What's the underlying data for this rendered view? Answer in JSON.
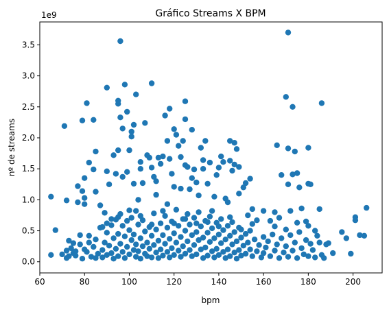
{
  "chart_data": {
    "type": "scatter",
    "title": "Gráfico Streams X BPM",
    "xlabel": "bpm",
    "ylabel": "nº de streams",
    "y_offset_label": "1e9",
    "xlim": [
      60,
      213
    ],
    "ylim": [
      -0.18,
      3.87
    ],
    "x_ticks": [
      60,
      80,
      100,
      120,
      140,
      160,
      180,
      200
    ],
    "y_ticks": [
      0.0,
      0.5,
      1.0,
      1.5,
      2.0,
      2.5,
      3.0,
      3.5
    ],
    "x_tick_labels": [
      "60",
      "80",
      "100",
      "120",
      "140",
      "160",
      "180",
      "200"
    ],
    "y_tick_labels": [
      "0.0",
      "0.5",
      "1.0",
      "1.5",
      "2.0",
      "2.5",
      "3.0",
      "3.5"
    ],
    "y_unit_note": "values in units of 1e9 streams",
    "grid": false,
    "marker_color": "#1f77b4",
    "points": [
      [
        65,
        0.11
      ],
      [
        65,
        1.05
      ],
      [
        67,
        0.51
      ],
      [
        71,
        2.19
      ],
      [
        72,
        0.99
      ],
      [
        72,
        0.18
      ],
      [
        73,
        0.09
      ],
      [
        73,
        0.34
      ],
      [
        75,
        0.14
      ],
      [
        76,
        0.17
      ],
      [
        77,
        0.96
      ],
      [
        77,
        1.22
      ],
      [
        78,
        0.43
      ],
      [
        79,
        1.14
      ],
      [
        79,
        2.28
      ],
      [
        80,
        1.35
      ],
      [
        80,
        1.03
      ],
      [
        80,
        0.93
      ],
      [
        81,
        2.56
      ],
      [
        82,
        1.6
      ],
      [
        82,
        0.31
      ],
      [
        84,
        2.29
      ],
      [
        84,
        1.49
      ],
      [
        85,
        1.78
      ],
      [
        85,
        1.13
      ],
      [
        87,
        0.91
      ],
      [
        88,
        0.56
      ],
      [
        89,
        0.79
      ],
      [
        90,
        2.81
      ],
      [
        90,
        1.46
      ],
      [
        91,
        1.25
      ],
      [
        92,
        0.69
      ],
      [
        93,
        1.72
      ],
      [
        94,
        1.42
      ],
      [
        95,
        1.8
      ],
      [
        95,
        2.6
      ],
      [
        95,
        2.55
      ],
      [
        96,
        3.56
      ],
      [
        96,
        2.33
      ],
      [
        97,
        1.37
      ],
      [
        97,
        2.15
      ],
      [
        98,
        2.86
      ],
      [
        99,
        1.45
      ],
      [
        99,
        2.42
      ],
      [
        100,
        1.8
      ],
      [
        101,
        2.1
      ],
      [
        101,
        2.02
      ],
      [
        102,
        2.21
      ],
      [
        102,
        1.26
      ],
      [
        103,
        2.7
      ],
      [
        103,
        0.82
      ],
      [
        104,
        1.0
      ],
      [
        105,
        1.5
      ],
      [
        105,
        1.61
      ],
      [
        106,
        1.27
      ],
      [
        107,
        2.24
      ],
      [
        108,
        1.72
      ],
      [
        109,
        1.68
      ],
      [
        110,
        2.88
      ],
      [
        110,
        1.52
      ],
      [
        111,
        1.37
      ],
      [
        112,
        1.3
      ],
      [
        112,
        1.08
      ],
      [
        113,
        1.68
      ],
      [
        114,
        1.58
      ],
      [
        115,
        1.7
      ],
      [
        116,
        2.36
      ],
      [
        117,
        1.95
      ],
      [
        117,
        0.93
      ],
      [
        118,
        2.47
      ],
      [
        118,
        1.66
      ],
      [
        119,
        1.42
      ],
      [
        120,
        1.21
      ],
      [
        120,
        2.14
      ],
      [
        121,
        2.05
      ],
      [
        122,
        1.87
      ],
      [
        123,
        1.69
      ],
      [
        123,
        1.18
      ],
      [
        124,
        1.95
      ],
      [
        125,
        2.59
      ],
      [
        125,
        2.3
      ],
      [
        125,
        1.56
      ],
      [
        126,
        1.53
      ],
      [
        127,
        1.17
      ],
      [
        128,
        1.35
      ],
      [
        128,
        2.13
      ],
      [
        129,
        1.49
      ],
      [
        130,
        1.28
      ],
      [
        131,
        1.07
      ],
      [
        132,
        1.84
      ],
      [
        133,
        1.64
      ],
      [
        133,
        1.5
      ],
      [
        134,
        1.95
      ],
      [
        135,
        1.26
      ],
      [
        136,
        1.6
      ],
      [
        137,
        0.82
      ],
      [
        138,
        1.05
      ],
      [
        139,
        1.4
      ],
      [
        140,
        1.52
      ],
      [
        141,
        1.7
      ],
      [
        142,
        1.61
      ],
      [
        143,
        1.02
      ],
      [
        144,
        0.96
      ],
      [
        145,
        1.95
      ],
      [
        145,
        1.63
      ],
      [
        146,
        1.47
      ],
      [
        147,
        1.57
      ],
      [
        147,
        1.92
      ],
      [
        148,
        1.82
      ],
      [
        149,
        1.53
      ],
      [
        149,
        1.1
      ],
      [
        151,
        1.2
      ],
      [
        152,
        1.27
      ],
      [
        153,
        0.75
      ],
      [
        154,
        1.34
      ],
      [
        155,
        0.85
      ],
      [
        157,
        0.67
      ],
      [
        160,
        0.82
      ],
      [
        163,
        0.66
      ],
      [
        165,
        0.8
      ],
      [
        166,
        1.88
      ],
      [
        167,
        0.71
      ],
      [
        168,
        1.4
      ],
      [
        170,
        2.66
      ],
      [
        171,
        3.7
      ],
      [
        171,
        1.83
      ],
      [
        171,
        1.25
      ],
      [
        172,
        0.82
      ],
      [
        173,
        2.5
      ],
      [
        173,
        1.41
      ],
      [
        174,
        1.78
      ],
      [
        175,
        1.43
      ],
      [
        176,
        1.2
      ],
      [
        177,
        0.86
      ],
      [
        179,
        0.65
      ],
      [
        180,
        1.84
      ],
      [
        180,
        1.26
      ],
      [
        181,
        1.25
      ],
      [
        183,
        0.5
      ],
      [
        185,
        0.85
      ],
      [
        186,
        2.56
      ],
      [
        188,
        0.28
      ],
      [
        189,
        0.3
      ],
      [
        191,
        0.14
      ],
      [
        195,
        0.48
      ],
      [
        197,
        0.38
      ],
      [
        199,
        0.13
      ],
      [
        201,
        0.72
      ],
      [
        201,
        0.67
      ],
      [
        203,
        0.43
      ],
      [
        205,
        0.42
      ],
      [
        206,
        0.87
      ],
      [
        70,
        0.12
      ],
      [
        72,
        0.06
      ],
      [
        74,
        0.22
      ],
      [
        76,
        0.1
      ],
      [
        78,
        0.28
      ],
      [
        79,
        0.05
      ],
      [
        81,
        0.16
      ],
      [
        82,
        0.42
      ],
      [
        83,
        0.08
      ],
      [
        84,
        0.24
      ],
      [
        85,
        0.36
      ],
      [
        86,
        0.13
      ],
      [
        87,
        0.55
      ],
      [
        88,
        0.19
      ],
      [
        88,
        0.07
      ],
      [
        89,
        0.31
      ],
      [
        90,
        0.47
      ],
      [
        90,
        0.11
      ],
      [
        91,
        0.26
      ],
      [
        92,
        0.59
      ],
      [
        92,
        0.14
      ],
      [
        93,
        0.38
      ],
      [
        93,
        0.05
      ],
      [
        94,
        0.68
      ],
      [
        94,
        0.21
      ],
      [
        95,
        0.45
      ],
      [
        95,
        0.09
      ],
      [
        96,
        0.77
      ],
      [
        96,
        0.29
      ],
      [
        97,
        0.58
      ],
      [
        97,
        0.16
      ],
      [
        98,
        0.41
      ],
      [
        98,
        0.06
      ],
      [
        99,
        0.66
      ],
      [
        99,
        0.24
      ],
      [
        100,
        0.51
      ],
      [
        100,
        0.12
      ],
      [
        101,
        0.35
      ],
      [
        101,
        0.71
      ],
      [
        102,
        0.19
      ],
      [
        102,
        0.44
      ],
      [
        103,
        0.08
      ],
      [
        103,
        0.28
      ],
      [
        104,
        0.6
      ],
      [
        104,
        0.17
      ],
      [
        105,
        0.38
      ],
      [
        105,
        0.05
      ],
      [
        106,
        0.25
      ],
      [
        106,
        0.67
      ],
      [
        107,
        0.13
      ],
      [
        107,
        0.49
      ],
      [
        108,
        0.31
      ],
      [
        108,
        0.09
      ],
      [
        109,
        0.56
      ],
      [
        109,
        0.21
      ],
      [
        110,
        0.42
      ],
      [
        110,
        0.07
      ],
      [
        111,
        0.27
      ],
      [
        111,
        0.78
      ],
      [
        112,
        0.15
      ],
      [
        112,
        0.52
      ],
      [
        113,
        0.34
      ],
      [
        113,
        0.06
      ],
      [
        114,
        0.62
      ],
      [
        114,
        0.2
      ],
      [
        115,
        0.43
      ],
      [
        115,
        0.1
      ],
      [
        116,
        0.29
      ],
      [
        116,
        0.74
      ],
      [
        117,
        0.16
      ],
      [
        117,
        0.55
      ],
      [
        118,
        0.37
      ],
      [
        118,
        0.07
      ],
      [
        119,
        0.65
      ],
      [
        119,
        0.22
      ],
      [
        120,
        0.46
      ],
      [
        120,
        0.11
      ],
      [
        121,
        0.31
      ],
      [
        121,
        0.84
      ],
      [
        122,
        0.18
      ],
      [
        122,
        0.58
      ],
      [
        123,
        0.4
      ],
      [
        123,
        0.08
      ],
      [
        124,
        0.69
      ],
      [
        124,
        0.25
      ],
      [
        125,
        0.5
      ],
      [
        125,
        0.13
      ],
      [
        126,
        0.33
      ],
      [
        126,
        0.77
      ],
      [
        127,
        0.19
      ],
      [
        127,
        0.6
      ],
      [
        128,
        0.43
      ],
      [
        128,
        0.09
      ],
      [
        129,
        0.71
      ],
      [
        129,
        0.27
      ],
      [
        130,
        0.48
      ],
      [
        130,
        0.12
      ],
      [
        131,
        0.35
      ],
      [
        131,
        0.8
      ],
      [
        132,
        0.2
      ],
      [
        132,
        0.57
      ],
      [
        133,
        0.39
      ],
      [
        133,
        0.06
      ],
      [
        134,
        0.66
      ],
      [
        134,
        0.23
      ],
      [
        135,
        0.47
      ],
      [
        135,
        0.1
      ],
      [
        136,
        0.32
      ],
      [
        136,
        0.73
      ],
      [
        137,
        0.17
      ],
      [
        137,
        0.54
      ],
      [
        138,
        0.38
      ],
      [
        138,
        0.07
      ],
      [
        139,
        0.63
      ],
      [
        139,
        0.21
      ],
      [
        140,
        0.44
      ],
      [
        140,
        0.11
      ],
      [
        141,
        0.3
      ],
      [
        141,
        0.69
      ],
      [
        142,
        0.16
      ],
      [
        142,
        0.51
      ],
      [
        143,
        0.36
      ],
      [
        143,
        0.06
      ],
      [
        144,
        0.58
      ],
      [
        144,
        0.2
      ],
      [
        145,
        0.42
      ],
      [
        145,
        0.09
      ],
      [
        146,
        0.28
      ],
      [
        146,
        0.64
      ],
      [
        147,
        0.15
      ],
      [
        147,
        0.48
      ],
      [
        148,
        0.33
      ],
      [
        148,
        0.05
      ],
      [
        149,
        0.55
      ],
      [
        149,
        0.19
      ],
      [
        150,
        0.39
      ],
      [
        150,
        0.1
      ],
      [
        151,
        0.26
      ],
      [
        152,
        0.45
      ],
      [
        152,
        0.13
      ],
      [
        153,
        0.31
      ],
      [
        154,
        0.2
      ],
      [
        154,
        0.5
      ],
      [
        155,
        0.09
      ],
      [
        156,
        0.36
      ],
      [
        157,
        0.17
      ],
      [
        158,
        0.27
      ],
      [
        159,
        0.07
      ],
      [
        160,
        0.4
      ],
      [
        160,
        0.14
      ],
      [
        161,
        0.23
      ],
      [
        162,
        0.33
      ],
      [
        163,
        0.09
      ],
      [
        164,
        0.44
      ],
      [
        165,
        0.18
      ],
      [
        166,
        0.28
      ],
      [
        167,
        0.06
      ],
      [
        168,
        0.38
      ],
      [
        169,
        0.15
      ],
      [
        170,
        0.52
      ],
      [
        170,
        0.25
      ],
      [
        171,
        0.08
      ],
      [
        172,
        0.43
      ],
      [
        173,
        0.18
      ],
      [
        174,
        0.31
      ],
      [
        175,
        0.06
      ],
      [
        176,
        0.48
      ],
      [
        177,
        0.22
      ],
      [
        178,
        0.12
      ],
      [
        179,
        0.35
      ],
      [
        180,
        0.58
      ],
      [
        180,
        0.09
      ],
      [
        181,
        0.29
      ],
      [
        182,
        0.19
      ],
      [
        183,
        0.07
      ],
      [
        184,
        0.42
      ],
      [
        186,
        0.11
      ],
      [
        187,
        0.06
      ],
      [
        75,
        0.3
      ],
      [
        80,
        0.2
      ],
      [
        85,
        0.06
      ],
      [
        90,
        0.62
      ],
      [
        95,
        0.72
      ],
      [
        100,
        0.83
      ],
      [
        105,
        0.74
      ],
      [
        110,
        0.6
      ],
      [
        115,
        0.82
      ],
      [
        120,
        0.62
      ],
      [
        125,
        0.69
      ],
      [
        130,
        0.62
      ],
      [
        135,
        0.64
      ],
      [
        140,
        0.57
      ],
      [
        145,
        0.72
      ],
      [
        150,
        0.52
      ],
      [
        155,
        0.61
      ],
      [
        165,
        0.57
      ],
      [
        175,
        0.63
      ],
      [
        185,
        0.31
      ]
    ]
  }
}
